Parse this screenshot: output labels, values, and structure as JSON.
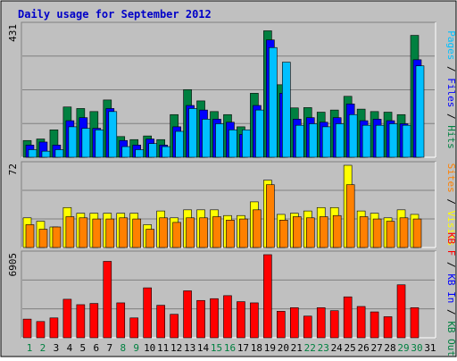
{
  "chart_data": {
    "type": "bar",
    "title": "Daily usage for September 2012",
    "categories": [
      "1",
      "2",
      "3",
      "4",
      "5",
      "6",
      "7",
      "8",
      "9",
      "10",
      "11",
      "12",
      "13",
      "14",
      "15",
      "16",
      "17",
      "18",
      "19",
      "20",
      "21",
      "22",
      "23",
      "24",
      "25",
      "26",
      "27",
      "28",
      "29",
      "30",
      "31"
    ],
    "weekend_days": [
      "1",
      "2",
      "8",
      "9",
      "15",
      "16",
      "22",
      "23",
      "29",
      "30"
    ],
    "panels": [
      {
        "name": "Hits / Files / Pages",
        "axis_max_label": "431",
        "ylim": [
          0,
          431
        ],
        "vertical_label_parts": [
          {
            "text": "Pages",
            "color": "#00c0ff"
          },
          {
            "text": " / ",
            "color": "#000000"
          },
          {
            "text": "Files",
            "color": "#0000ff"
          },
          {
            "text": " / ",
            "color": "#000000"
          },
          {
            "text": "Hits",
            "color": "#008040"
          }
        ],
        "series": [
          {
            "name": "Hits",
            "color": "#008040",
            "values": [
              55,
              60,
              90,
              165,
              160,
              150,
              188,
              68,
              58,
              70,
              58,
              140,
              222,
              185,
              150,
              140,
              100,
              210,
              415,
              238,
              162,
              163,
              148,
              155,
              200,
              158,
              150,
              148,
              140,
              400,
              0
            ]
          },
          {
            "name": "Files",
            "color": "#0000ff",
            "values": [
              40,
              50,
              40,
              120,
              130,
              95,
              160,
              55,
              40,
              60,
              40,
              100,
              170,
              155,
              125,
              115,
              75,
              170,
              385,
              210,
              125,
              130,
              115,
              130,
              175,
              120,
              125,
              120,
              110,
              320,
              0
            ]
          },
          {
            "name": "Pages",
            "color": "#00c0ff",
            "values": [
              25,
              20,
              25,
              100,
              95,
              90,
              150,
              35,
              25,
              45,
              35,
              85,
              160,
              125,
              110,
              90,
              90,
              155,
              360,
              312,
              105,
              110,
              100,
              110,
              140,
              105,
              105,
              110,
              105,
              300,
              0
            ]
          }
        ]
      },
      {
        "name": "Visits / Sites",
        "axis_max_label": "72",
        "ylim": [
          0,
          72
        ],
        "vertical_label_parts": [
          {
            "text": "Sites",
            "color": "#ff8000"
          },
          {
            "text": " / ",
            "color": "#000000"
          },
          {
            "text": "Visits",
            "color": "#ffff00"
          }
        ],
        "series": [
          {
            "name": "Visits",
            "color": "#ffff00",
            "values": [
              26,
              23,
              18,
              35,
              30,
              30,
              30,
              30,
              30,
              20,
              32,
              26,
              33,
              33,
              33,
              28,
              28,
              40,
              59,
              29,
              30,
              32,
              35,
              35,
              73,
              32,
              30,
              26,
              33,
              29,
              0
            ]
          },
          {
            "name": "Sites",
            "color": "#ff8000",
            "values": [
              20,
              16,
              18,
              27,
              26,
              25,
              25,
              26,
              25,
              16,
              26,
              22,
              26,
              26,
              27,
              24,
              25,
              33,
              55,
              24,
              27,
              26,
              27,
              28,
              55,
              27,
              25,
              23,
              26,
              25,
              0
            ]
          }
        ]
      },
      {
        "name": "KB F / KB In / KB Out",
        "axis_max_label": "6905",
        "ylim": [
          0,
          6905
        ],
        "vertical_label_parts": [
          {
            "text": "KB F",
            "color": "#ff0000"
          },
          {
            "text": " / ",
            "color": "#000000"
          },
          {
            "text": "KB In",
            "color": "#0000ff"
          },
          {
            "text": " / ",
            "color": "#000000"
          },
          {
            "text": "KB Out",
            "color": "#008040"
          }
        ],
        "series": [
          {
            "name": "KB F",
            "color": "#ff0000",
            "values": [
              1550,
              1350,
              1650,
              3200,
              2750,
              2850,
              6350,
              2900,
              1650,
              4150,
              2700,
              1950,
              3900,
              3100,
              3250,
              3500,
              3000,
              2900,
              6950,
              2200,
              2500,
              1800,
              2500,
              2250,
              3400,
              2600,
              2150,
              1750,
              4400,
              2500,
              0
            ]
          }
        ]
      }
    ]
  }
}
